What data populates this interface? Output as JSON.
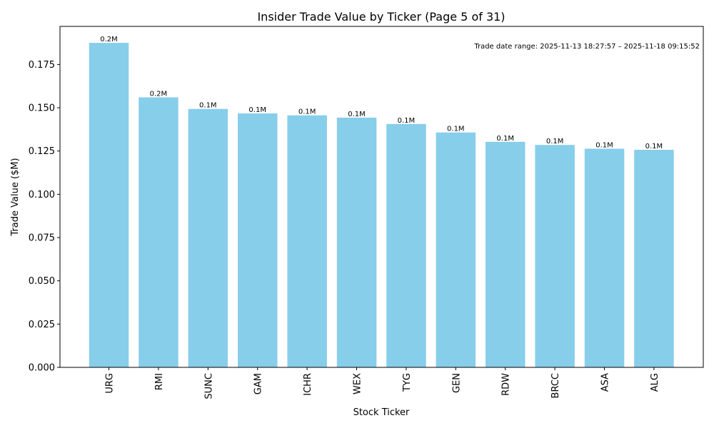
{
  "chart_data": {
    "type": "bar",
    "title": "Insider Trade Value by Ticker (Page 5 of 31)",
    "xlabel": "Stock Ticker",
    "ylabel": "Trade Value ($M)",
    "categories": [
      "URG",
      "RMI",
      "SUNC",
      "GAM",
      "ICHR",
      "WEX",
      "TYG",
      "GEN",
      "RDW",
      "BRCC",
      "ASA",
      "ALG"
    ],
    "values": [
      0.1875,
      0.156,
      0.1493,
      0.1467,
      0.1456,
      0.1443,
      0.1406,
      0.1357,
      0.1303,
      0.1285,
      0.1263,
      0.1257
    ],
    "data_labels": [
      "0.2M",
      "0.2M",
      "0.1M",
      "0.1M",
      "0.1M",
      "0.1M",
      "0.1M",
      "0.1M",
      "0.1M",
      "0.1M",
      "0.1M",
      "0.1M"
    ],
    "ylim": [
      0,
      0.197
    ],
    "yticks": [
      0.0,
      0.025,
      0.05,
      0.075,
      0.1,
      0.125,
      0.15,
      0.175
    ],
    "ytick_labels": [
      "0.000",
      "0.025",
      "0.050",
      "0.075",
      "0.100",
      "0.125",
      "0.150",
      "0.175"
    ],
    "bar_color": "#87CEEB",
    "annotation": "Trade date range: 2025-11-13 18:27:57 – 2025-11-18 09:15:52",
    "grid": false
  }
}
